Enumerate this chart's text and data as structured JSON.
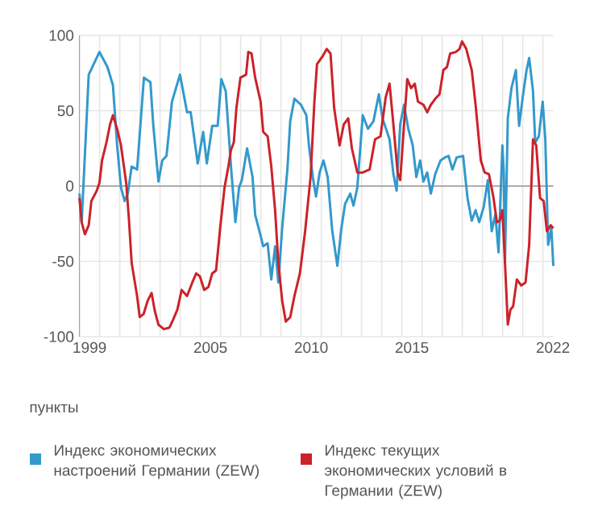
{
  "chart_data": {
    "type": "line",
    "xlim": [
      1999,
      2022.52
    ],
    "ylim": [
      -100,
      100
    ],
    "xticks": [
      {
        "value": 1999.5,
        "label": "1999"
      },
      {
        "value": 2005.5,
        "label": "2005"
      },
      {
        "value": 2010.5,
        "label": "2010"
      },
      {
        "value": 2015.5,
        "label": "2015"
      },
      {
        "value": 2022.5,
        "label": "2022"
      },
      {
        "value": 1999,
        "label": null
      },
      {
        "value": 2000,
        "label": null
      },
      {
        "value": 2001,
        "label": null
      },
      {
        "value": 2002,
        "label": null
      },
      {
        "value": 2003,
        "label": null
      },
      {
        "value": 2004,
        "label": null
      },
      {
        "value": 2005,
        "label": null
      },
      {
        "value": 2006,
        "label": null
      },
      {
        "value": 2007,
        "label": null
      },
      {
        "value": 2008,
        "label": null
      },
      {
        "value": 2009,
        "label": null
      },
      {
        "value": 2010,
        "label": null
      },
      {
        "value": 2011,
        "label": null
      },
      {
        "value": 2012,
        "label": null
      },
      {
        "value": 2013,
        "label": null
      },
      {
        "value": 2014,
        "label": null
      },
      {
        "value": 2015,
        "label": null
      },
      {
        "value": 2016,
        "label": null
      },
      {
        "value": 2017,
        "label": null
      },
      {
        "value": 2018,
        "label": null
      },
      {
        "value": 2019,
        "label": null
      },
      {
        "value": 2020,
        "label": null
      },
      {
        "value": 2021,
        "label": null
      },
      {
        "value": 2022,
        "label": null
      }
    ],
    "yticks": [
      -100,
      -50,
      0,
      50,
      100
    ],
    "grid": true,
    "legend": "bottom",
    "marker": "none",
    "line_style": "solid",
    "ref_lines": [
      {
        "axis": "y",
        "value": 0,
        "color": "#999999"
      }
    ],
    "annotations": [
      "пункты"
    ],
    "series": [
      {
        "name": "Индекс экономических настроений Германии (ZEW)",
        "color": "#3399cc",
        "x": [
          1999.0,
          1999.11,
          1999.46,
          1999.99,
          2000.39,
          2000.66,
          2000.87,
          2001.06,
          2001.24,
          2001.4,
          2001.59,
          2001.86,
          2002.2,
          2002.52,
          2002.66,
          2002.92,
          2003.11,
          2003.32,
          2003.59,
          2003.99,
          2004.34,
          2004.52,
          2004.87,
          2005.14,
          2005.32,
          2005.59,
          2005.86,
          2006.04,
          2006.26,
          2006.52,
          2006.74,
          2006.92,
          2007.06,
          2007.32,
          2007.59,
          2007.72,
          2007.99,
          2008.12,
          2008.34,
          2008.52,
          2008.71,
          2008.87,
          2009.06,
          2009.32,
          2009.46,
          2009.67,
          2009.99,
          2010.26,
          2010.39,
          2010.58,
          2010.74,
          2010.92,
          2011.11,
          2011.32,
          2011.54,
          2011.8,
          2011.99,
          2012.18,
          2012.44,
          2012.6,
          2012.79,
          2013.06,
          2013.32,
          2013.59,
          2013.86,
          2014.04,
          2014.39,
          2014.58,
          2014.74,
          2014.92,
          2015.11,
          2015.32,
          2015.54,
          2015.72,
          2015.91,
          2016.07,
          2016.26,
          2016.44,
          2016.66,
          2016.92,
          2017.14,
          2017.32,
          2017.51,
          2017.72,
          2018.04,
          2018.26,
          2018.47,
          2018.66,
          2018.84,
          2019.06,
          2019.27,
          2019.46,
          2019.64,
          2019.8,
          2019.99,
          2020.06,
          2020.12,
          2020.26,
          2020.44,
          2020.66,
          2020.82,
          2021.0,
          2021.19,
          2021.32,
          2021.51,
          2021.62,
          2021.8,
          2021.99,
          2022.12,
          2022.26,
          2022.42,
          2022.52
        ],
        "values": [
          -5,
          -24,
          74,
          89,
          79,
          67,
          27,
          -1,
          -10,
          -5,
          13,
          11,
          72,
          69,
          41,
          3,
          17,
          20,
          56,
          74,
          49,
          49,
          15,
          36,
          15,
          40,
          40,
          71,
          63,
          13,
          -24,
          -1,
          4,
          25,
          6,
          -19,
          -33,
          -40,
          -38,
          -62,
          -40,
          -64,
          -28,
          11,
          43,
          58,
          54,
          47,
          27,
          6,
          -7,
          9,
          17,
          6,
          -29,
          -53,
          -29,
          -12,
          -5,
          -13,
          -1,
          47,
          38,
          43,
          61,
          45,
          31,
          8,
          -3,
          41,
          54,
          38,
          27,
          6,
          17,
          3,
          9,
          -5,
          8,
          17,
          19,
          20,
          11,
          19,
          20,
          -8,
          -23,
          -16,
          -24,
          -14,
          4,
          -30,
          -19,
          -44,
          27,
          9,
          -49,
          45,
          65,
          77,
          40,
          59,
          77,
          85,
          63,
          29,
          33,
          56,
          31,
          -39,
          -28,
          -53
        ]
      },
      {
        "name": "Индекс текущих экономических условий в Германии (ZEW)",
        "color": "#cc2229",
        "x": [
          1999.0,
          1999.11,
          1999.27,
          1999.46,
          1999.59,
          1999.86,
          1999.99,
          2000.12,
          2000.34,
          2000.52,
          2000.66,
          2000.87,
          2001.06,
          2001.32,
          2001.46,
          2001.59,
          2001.86,
          2001.99,
          2002.18,
          2002.39,
          2002.58,
          2002.74,
          2002.92,
          2003.19,
          2003.46,
          2003.64,
          2003.86,
          2004.07,
          2004.34,
          2004.6,
          2004.79,
          2004.98,
          2005.19,
          2005.4,
          2005.59,
          2005.78,
          2005.99,
          2006.2,
          2006.39,
          2006.52,
          2006.66,
          2006.79,
          2006.99,
          2007.27,
          2007.38,
          2007.54,
          2007.72,
          2007.99,
          2008.12,
          2008.34,
          2008.52,
          2008.71,
          2008.87,
          2009.06,
          2009.24,
          2009.46,
          2009.67,
          2009.94,
          2010.2,
          2010.47,
          2010.66,
          2010.79,
          2011.06,
          2011.27,
          2011.46,
          2011.64,
          2011.91,
          2012.12,
          2012.34,
          2012.52,
          2012.79,
          2013.06,
          2013.4,
          2013.67,
          2013.94,
          2014.2,
          2014.39,
          2014.58,
          2014.79,
          2014.92,
          2015.11,
          2015.27,
          2015.46,
          2015.64,
          2015.8,
          2016.07,
          2016.26,
          2016.44,
          2016.66,
          2016.87,
          2017.06,
          2017.24,
          2017.4,
          2017.67,
          2017.86,
          2017.99,
          2018.2,
          2018.47,
          2018.66,
          2018.92,
          2019.11,
          2019.32,
          2019.54,
          2019.72,
          2019.86,
          2019.99,
          2020.12,
          2020.26,
          2020.39,
          2020.52,
          2020.71,
          2020.92,
          2021.14,
          2021.32,
          2021.51,
          2021.67,
          2021.86,
          2022.04,
          2022.2,
          2022.39,
          2022.52
        ],
        "values": [
          -8,
          -24,
          -32,
          -26,
          -10,
          -3,
          2,
          17,
          29,
          41,
          47,
          38,
          27,
          2,
          -23,
          -51,
          -73,
          -87,
          -85,
          -76,
          -71,
          -83,
          -92,
          -95,
          -94,
          -89,
          -82,
          -69,
          -73,
          -64,
          -58,
          -60,
          -69,
          -67,
          -58,
          -56,
          -27,
          -1,
          13,
          24,
          29,
          52,
          72,
          74,
          89,
          88,
          72,
          56,
          36,
          33,
          13,
          -16,
          -51,
          -76,
          -90,
          -87,
          -73,
          -58,
          -30,
          6,
          56,
          81,
          86,
          91,
          88,
          52,
          27,
          41,
          45,
          25,
          9,
          9,
          11,
          31,
          33,
          59,
          68,
          41,
          9,
          4,
          41,
          71,
          65,
          68,
          56,
          54,
          49,
          54,
          58,
          61,
          77,
          79,
          88,
          89,
          91,
          96,
          91,
          77,
          54,
          17,
          9,
          8,
          -7,
          -24,
          -23,
          -16,
          -51,
          -92,
          -82,
          -80,
          -62,
          -66,
          -64,
          -39,
          31,
          27,
          -8,
          -10,
          -30,
          -26,
          -28
        ]
      }
    ]
  }
}
